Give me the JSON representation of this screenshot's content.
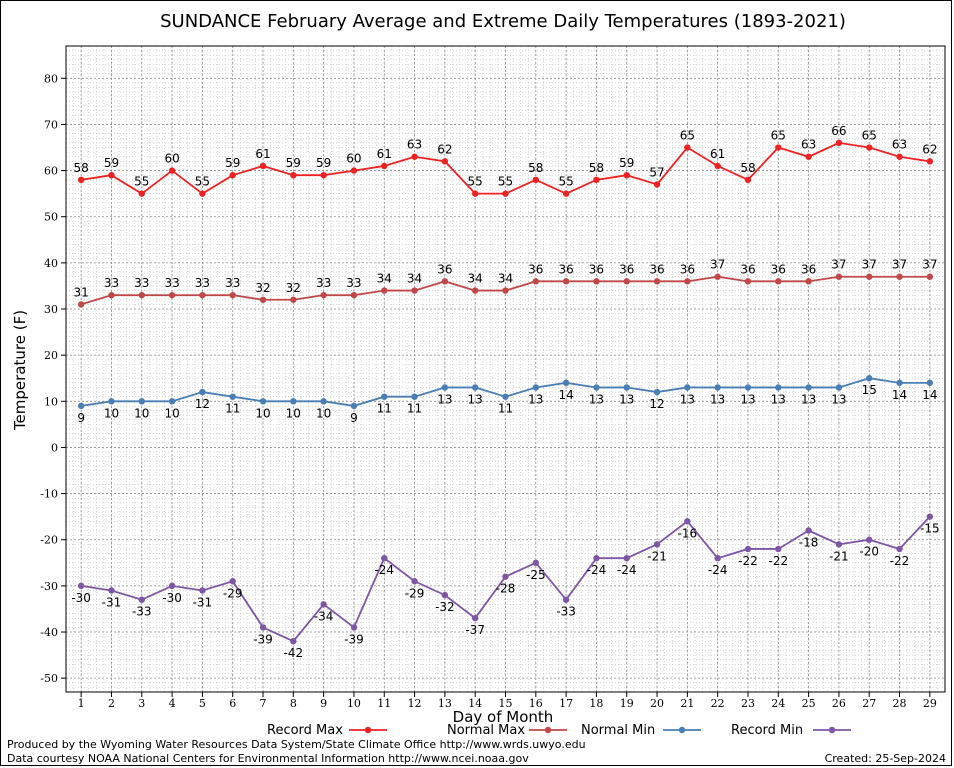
{
  "chart_data": {
    "type": "line",
    "title": "SUNDANCE February Average and Extreme Daily Temperatures (1893-2021)",
    "xlabel": "Day of Month",
    "ylabel": "Temperature (F)",
    "ylim": [
      -53,
      87
    ],
    "yticks": [
      -50,
      -40,
      -30,
      -20,
      -10,
      0,
      10,
      20,
      30,
      40,
      50,
      60,
      70,
      80
    ],
    "xlim": [
      0.5,
      29.5
    ],
    "grid": true,
    "legend_position": "bottom",
    "x": [
      1,
      2,
      3,
      4,
      5,
      6,
      7,
      8,
      9,
      10,
      11,
      12,
      13,
      14,
      15,
      16,
      17,
      18,
      19,
      20,
      21,
      22,
      23,
      24,
      25,
      26,
      27,
      28,
      29
    ],
    "series": [
      {
        "name": "Record Max",
        "color": "#ee2222",
        "label_position": "above",
        "values": [
          58,
          59,
          55,
          60,
          55,
          59,
          61,
          59,
          59,
          60,
          61,
          63,
          62,
          55,
          55,
          58,
          55,
          58,
          59,
          57,
          65,
          61,
          58,
          65,
          63,
          66,
          65,
          63,
          62
        ]
      },
      {
        "name": "Normal Max",
        "color": "#c04848",
        "label_position": "above",
        "values": [
          31,
          33,
          33,
          33,
          33,
          33,
          32,
          32,
          33,
          33,
          34,
          34,
          36,
          34,
          34,
          36,
          36,
          36,
          36,
          36,
          36,
          37,
          36,
          36,
          36,
          37,
          37,
          37,
          37
        ]
      },
      {
        "name": "Normal Min",
        "color": "#4a7fb5",
        "label_position": "below",
        "values": [
          9,
          10,
          10,
          10,
          12,
          11,
          10,
          10,
          10,
          9,
          11,
          11,
          13,
          13,
          11,
          13,
          14,
          13,
          13,
          12,
          13,
          13,
          13,
          13,
          13,
          13,
          15,
          14,
          14
        ]
      },
      {
        "name": "Record Min",
        "color": "#7f56a6",
        "label_position": "below",
        "values": [
          -30,
          -31,
          -33,
          -30,
          -31,
          -29,
          -39,
          -42,
          -34,
          -39,
          -24,
          -29,
          -32,
          -37,
          -28,
          -25,
          -33,
          -24,
          -24,
          -21,
          -16,
          -24,
          -22,
          -22,
          -18,
          -21,
          -20,
          -22,
          -15
        ]
      }
    ]
  },
  "footer": {
    "credit_1": "Produced by the Wyoming Water Resources Data System/State Climate Office http://www.wrds.uwyo.edu",
    "credit_2": "Data courtesy NOAA National Centers for Environmental Information http://www.ncei.noaa.gov",
    "created": "Created:  25-Sep-2024"
  }
}
